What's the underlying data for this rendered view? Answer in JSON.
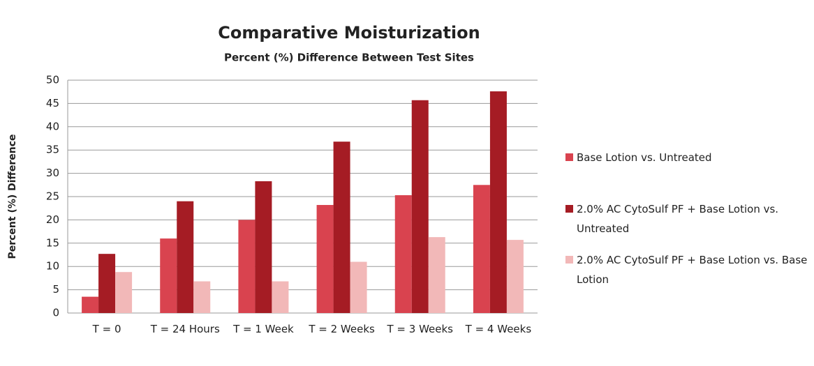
{
  "chart_data": {
    "type": "bar",
    "title": "Comparative  Moisturization",
    "subtitle": "Percent (%) Difference Between Test Sites",
    "y_label": "Percent (%) Difference",
    "categories": [
      "T = 0",
      "T = 24 Hours",
      "T = 1 Week",
      "T = 2 Weeks",
      "T = 3 Weeks",
      "T = 4 Weeks"
    ],
    "series": [
      {
        "name": "Base Lotion vs. Untreated",
        "color": "#d9434f",
        "values": [
          3.5,
          16,
          20,
          23.2,
          25.3,
          27.5
        ]
      },
      {
        "name": "2.0% AC CytoSulf PF + Base Lotion vs. Untreated",
        "color": "#a51c24",
        "values": [
          12.7,
          24,
          28.3,
          36.8,
          45.7,
          47.6
        ]
      },
      {
        "name": "2.0% AC CytoSulf PF + Base Lotion vs. Base Lotion",
        "color": "#f2b8b8",
        "values": [
          8.8,
          6.8,
          6.8,
          11,
          16.3,
          15.7
        ]
      }
    ],
    "ylim": [
      0,
      50
    ],
    "yticks": [
      0,
      5,
      10,
      15,
      20,
      25,
      30,
      35,
      40,
      45,
      50
    ],
    "grid": true,
    "legend": "right"
  }
}
